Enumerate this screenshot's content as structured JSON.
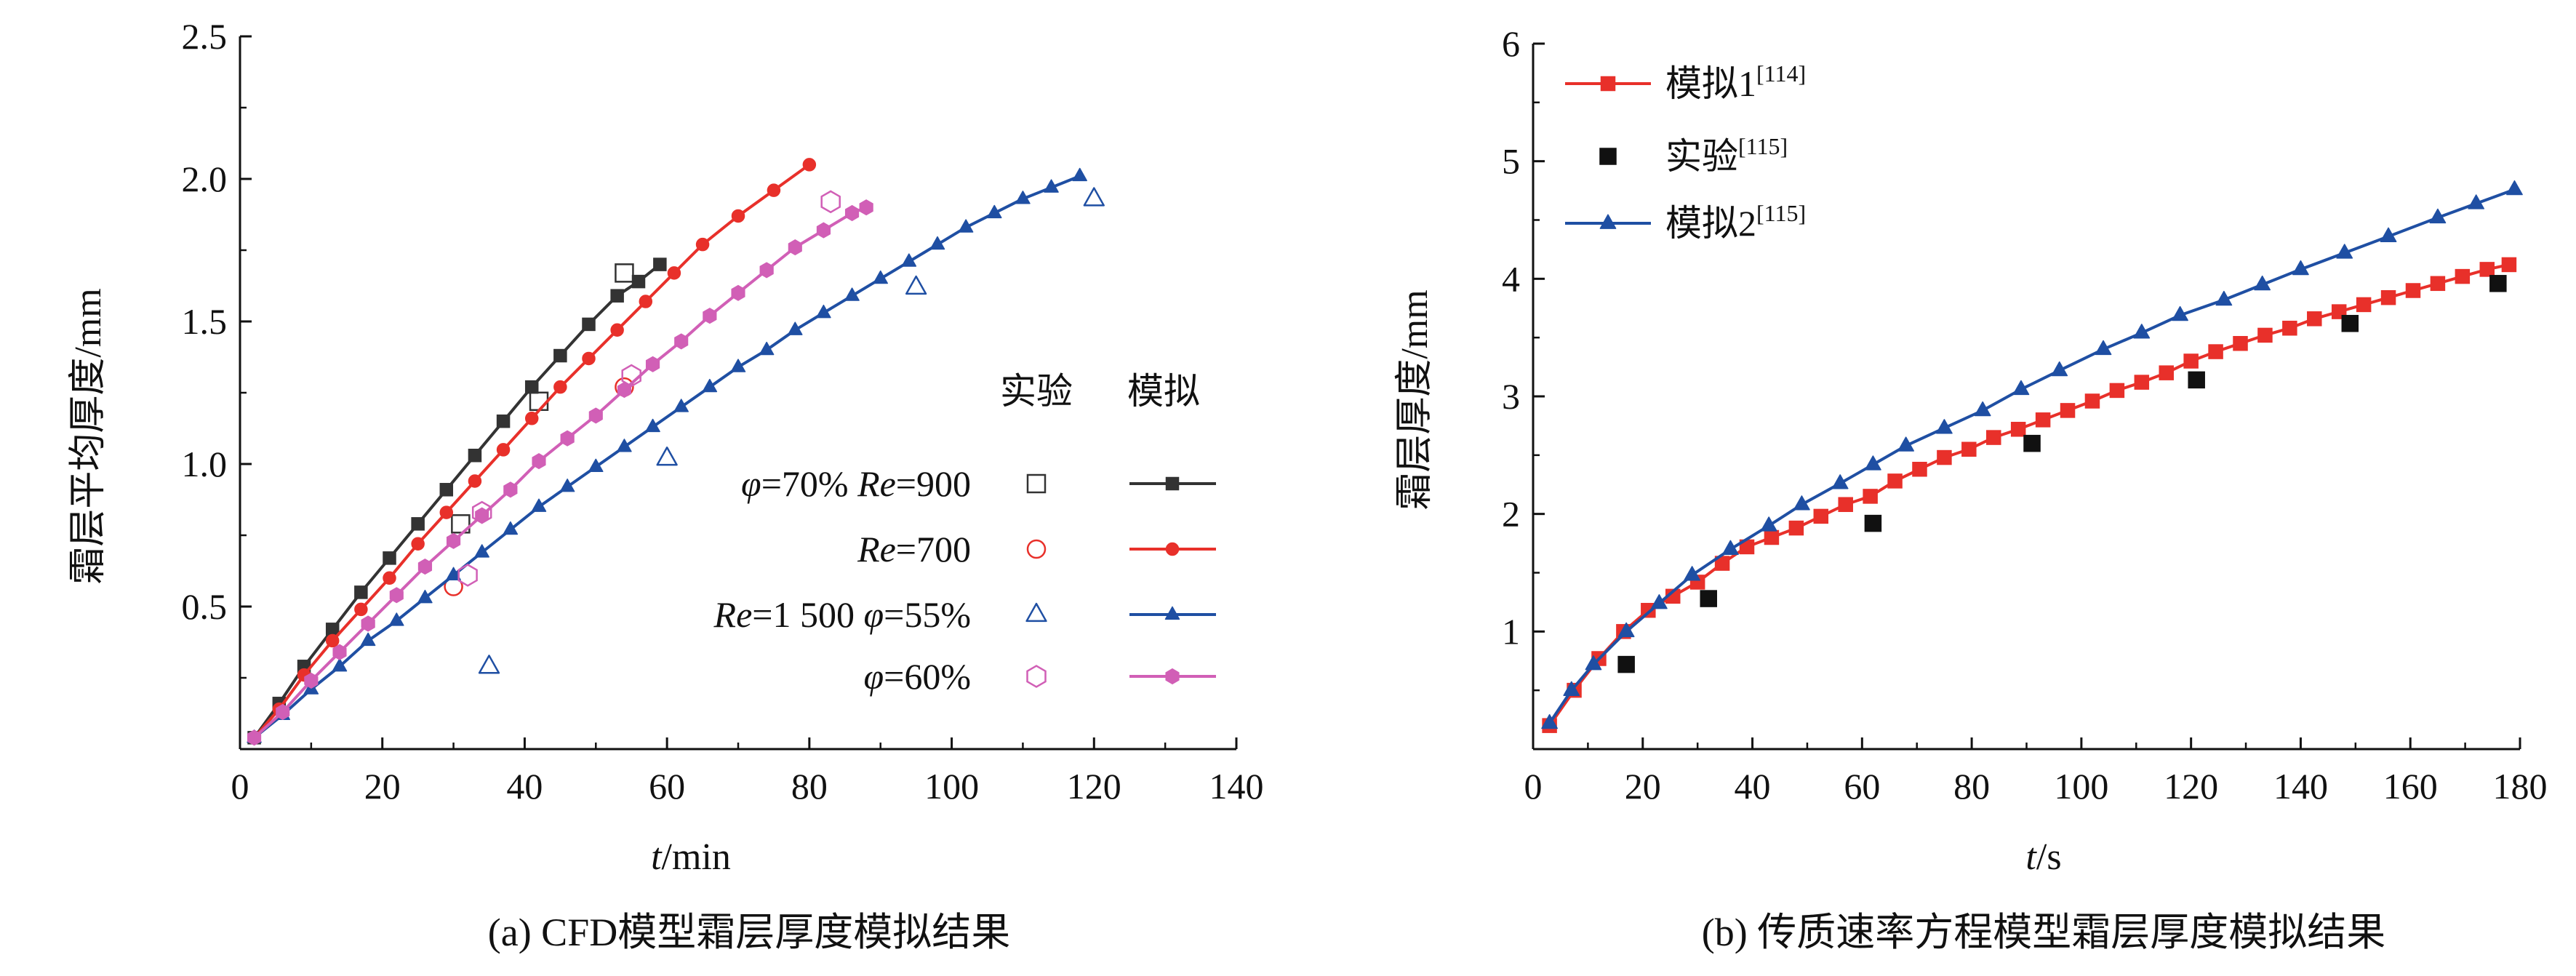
{
  "chart_data": [
    {
      "type": "line",
      "caption": "(a) CFD模型霜层厚度模拟结果",
      "xlabel_italic": "t",
      "xlabel_unit": "/min",
      "ylabel": "霜层平均厚度/mm",
      "xlim": [
        0,
        140
      ],
      "ylim": [
        0,
        2.5
      ],
      "xticks": [
        0,
        20,
        40,
        60,
        80,
        100,
        120,
        140
      ],
      "yticks": [
        0.5,
        1.0,
        1.5,
        2.0,
        2.5
      ],
      "ytick_labels": [
        "0.5",
        "1.0",
        "1.5",
        "2.0",
        "2.5"
      ],
      "legend": {
        "placement": "center-right",
        "header_exp": "实验",
        "header_sim": "模拟",
        "rows": [
          {
            "id": "r900",
            "label_parts": [
              [
                "φ",
                true
              ],
              [
                "=70% ",
                false
              ],
              [
                "Re",
                true
              ],
              [
                "=900",
                false
              ]
            ]
          },
          {
            "id": "r700",
            "label_parts": [
              [
                "Re",
                true
              ],
              [
                "=700",
                false
              ]
            ]
          },
          {
            "id": "r1500",
            "label_parts": [
              [
                "Re",
                true
              ],
              [
                "=1 500 ",
                false
              ],
              [
                "φ",
                true
              ],
              [
                "=55%",
                false
              ]
            ]
          },
          {
            "id": "phi60",
            "label_parts": [
              [
                "φ",
                true
              ],
              [
                "=60%",
                false
              ]
            ]
          }
        ]
      },
      "series": [
        {
          "id": "r900",
          "color": "#333333",
          "marker": "square",
          "simulation": {
            "x": [
              2,
              5.5,
              9,
              13,
              17,
              21,
              25,
              29,
              33,
              37,
              41,
              45,
              49,
              53,
              56,
              59
            ],
            "y": [
              0.04,
              0.16,
              0.29,
              0.42,
              0.55,
              0.67,
              0.79,
              0.91,
              1.03,
              1.15,
              1.27,
              1.38,
              1.49,
              1.59,
              1.64,
              1.7
            ]
          },
          "experiment": {
            "x": [
              31,
              42,
              54
            ],
            "y": [
              0.79,
              1.22,
              1.67
            ]
          }
        },
        {
          "id": "r700",
          "color": "#e8302a",
          "marker": "circle",
          "simulation": {
            "x": [
              2,
              5.5,
              9,
              13,
              17,
              21,
              25,
              29,
              33,
              37,
              41,
              45,
              49,
              53,
              57,
              61,
              65,
              70,
              75,
              80
            ],
            "y": [
              0.04,
              0.14,
              0.26,
              0.38,
              0.49,
              0.6,
              0.72,
              0.83,
              0.94,
              1.05,
              1.16,
              1.27,
              1.37,
              1.47,
              1.57,
              1.67,
              1.77,
              1.87,
              1.96,
              2.05
            ]
          },
          "experiment": {
            "x": [
              30,
              54
            ],
            "y": [
              0.57,
              1.27
            ]
          }
        },
        {
          "id": "r1500",
          "color": "#1f4fa3",
          "marker": "triangle",
          "simulation": {
            "x": [
              2,
              6,
              10,
              14,
              18,
              22,
              26,
              30,
              34,
              38,
              42,
              46,
              50,
              54,
              58,
              62,
              66,
              70,
              74,
              78,
              82,
              86,
              90,
              94,
              98,
              102,
              106,
              110,
              114,
              118
            ],
            "y": [
              0.04,
              0.12,
              0.21,
              0.29,
              0.38,
              0.45,
              0.53,
              0.61,
              0.69,
              0.77,
              0.85,
              0.92,
              0.99,
              1.06,
              1.13,
              1.2,
              1.27,
              1.34,
              1.4,
              1.47,
              1.53,
              1.59,
              1.65,
              1.71,
              1.77,
              1.83,
              1.88,
              1.93,
              1.97,
              2.01
            ]
          },
          "experiment": {
            "x": [
              35,
              60,
              95,
              120
            ],
            "y": [
              0.29,
              1.02,
              1.62,
              1.93
            ]
          }
        },
        {
          "id": "phi60",
          "color": "#d15fb6",
          "marker": "hexagon",
          "simulation": {
            "x": [
              2,
              6,
              10,
              14,
              18,
              22,
              26,
              30,
              34,
              38,
              42,
              46,
              50,
              54,
              58,
              62,
              66,
              70,
              74,
              78,
              82,
              86,
              88
            ],
            "y": [
              0.04,
              0.13,
              0.24,
              0.34,
              0.44,
              0.54,
              0.64,
              0.73,
              0.82,
              0.91,
              1.01,
              1.09,
              1.17,
              1.26,
              1.35,
              1.43,
              1.52,
              1.6,
              1.68,
              1.76,
              1.82,
              1.88,
              1.9
            ]
          },
          "experiment": {
            "x": [
              32,
              34,
              55,
              83
            ],
            "y": [
              0.61,
              0.83,
              1.31,
              1.92
            ]
          }
        }
      ]
    },
    {
      "type": "line",
      "caption": "(b) 传质速率方程模型霜层厚度模拟结果",
      "xlabel_italic": "t",
      "xlabel_unit": "/s",
      "ylabel": "霜层厚度/mm",
      "xlim": [
        0,
        180
      ],
      "ylim": [
        0,
        6
      ],
      "xticks": [
        0,
        20,
        40,
        60,
        80,
        100,
        120,
        140,
        160,
        180
      ],
      "yticks": [
        1,
        2,
        3,
        4,
        5,
        6
      ],
      "legend": {
        "placement": "top-left",
        "entries": [
          {
            "id": "sim1",
            "label": "模拟1",
            "ref": "[114]"
          },
          {
            "id": "exp",
            "label": "实验",
            "ref": "[115]"
          },
          {
            "id": "sim2",
            "label": "模拟2",
            "ref": "[115]"
          }
        ]
      },
      "series": [
        {
          "id": "sim1",
          "color": "#e8302a",
          "marker": "square",
          "line": true,
          "x": [
            3,
            7.5,
            12,
            16.5,
            21,
            25.5,
            30,
            34.5,
            39,
            43.5,
            48,
            52.5,
            57,
            61.5,
            66,
            70.5,
            75,
            79.5,
            84,
            88.5,
            93,
            97.5,
            102,
            106.5,
            111,
            115.5,
            120,
            124.5,
            129,
            133.5,
            138,
            142.5,
            147,
            151.5,
            156,
            160.5,
            165,
            169.5,
            174,
            178
          ],
          "y": [
            0.2,
            0.5,
            0.77,
            1.0,
            1.18,
            1.3,
            1.42,
            1.58,
            1.72,
            1.8,
            1.88,
            1.98,
            2.08,
            2.15,
            2.28,
            2.38,
            2.48,
            2.55,
            2.65,
            2.72,
            2.8,
            2.88,
            2.96,
            3.05,
            3.12,
            3.2,
            3.3,
            3.38,
            3.45,
            3.52,
            3.58,
            3.66,
            3.72,
            3.78,
            3.84,
            3.9,
            3.96,
            4.02,
            4.08,
            4.12
          ]
        },
        {
          "id": "exp",
          "color": "#111111",
          "marker": "square",
          "line": false,
          "x": [
            17,
            32,
            62,
            91,
            121,
            149,
            176
          ],
          "y": [
            0.72,
            1.28,
            1.92,
            2.6,
            3.14,
            3.62,
            3.96
          ]
        },
        {
          "id": "sim2",
          "color": "#1f4fa3",
          "marker": "triangle",
          "line": true,
          "x": [
            3,
            7,
            11,
            17,
            23,
            29,
            36,
            43,
            49,
            56,
            62,
            68,
            75,
            82,
            89,
            96,
            104,
            111,
            118,
            126,
            133,
            140,
            148,
            156,
            165,
            172,
            179
          ],
          "y": [
            0.22,
            0.5,
            0.72,
            1.0,
            1.24,
            1.48,
            1.7,
            1.9,
            2.08,
            2.26,
            2.42,
            2.58,
            2.73,
            2.88,
            3.06,
            3.22,
            3.4,
            3.54,
            3.69,
            3.82,
            3.95,
            4.08,
            4.22,
            4.36,
            4.52,
            4.64,
            4.76
          ]
        }
      ]
    }
  ]
}
